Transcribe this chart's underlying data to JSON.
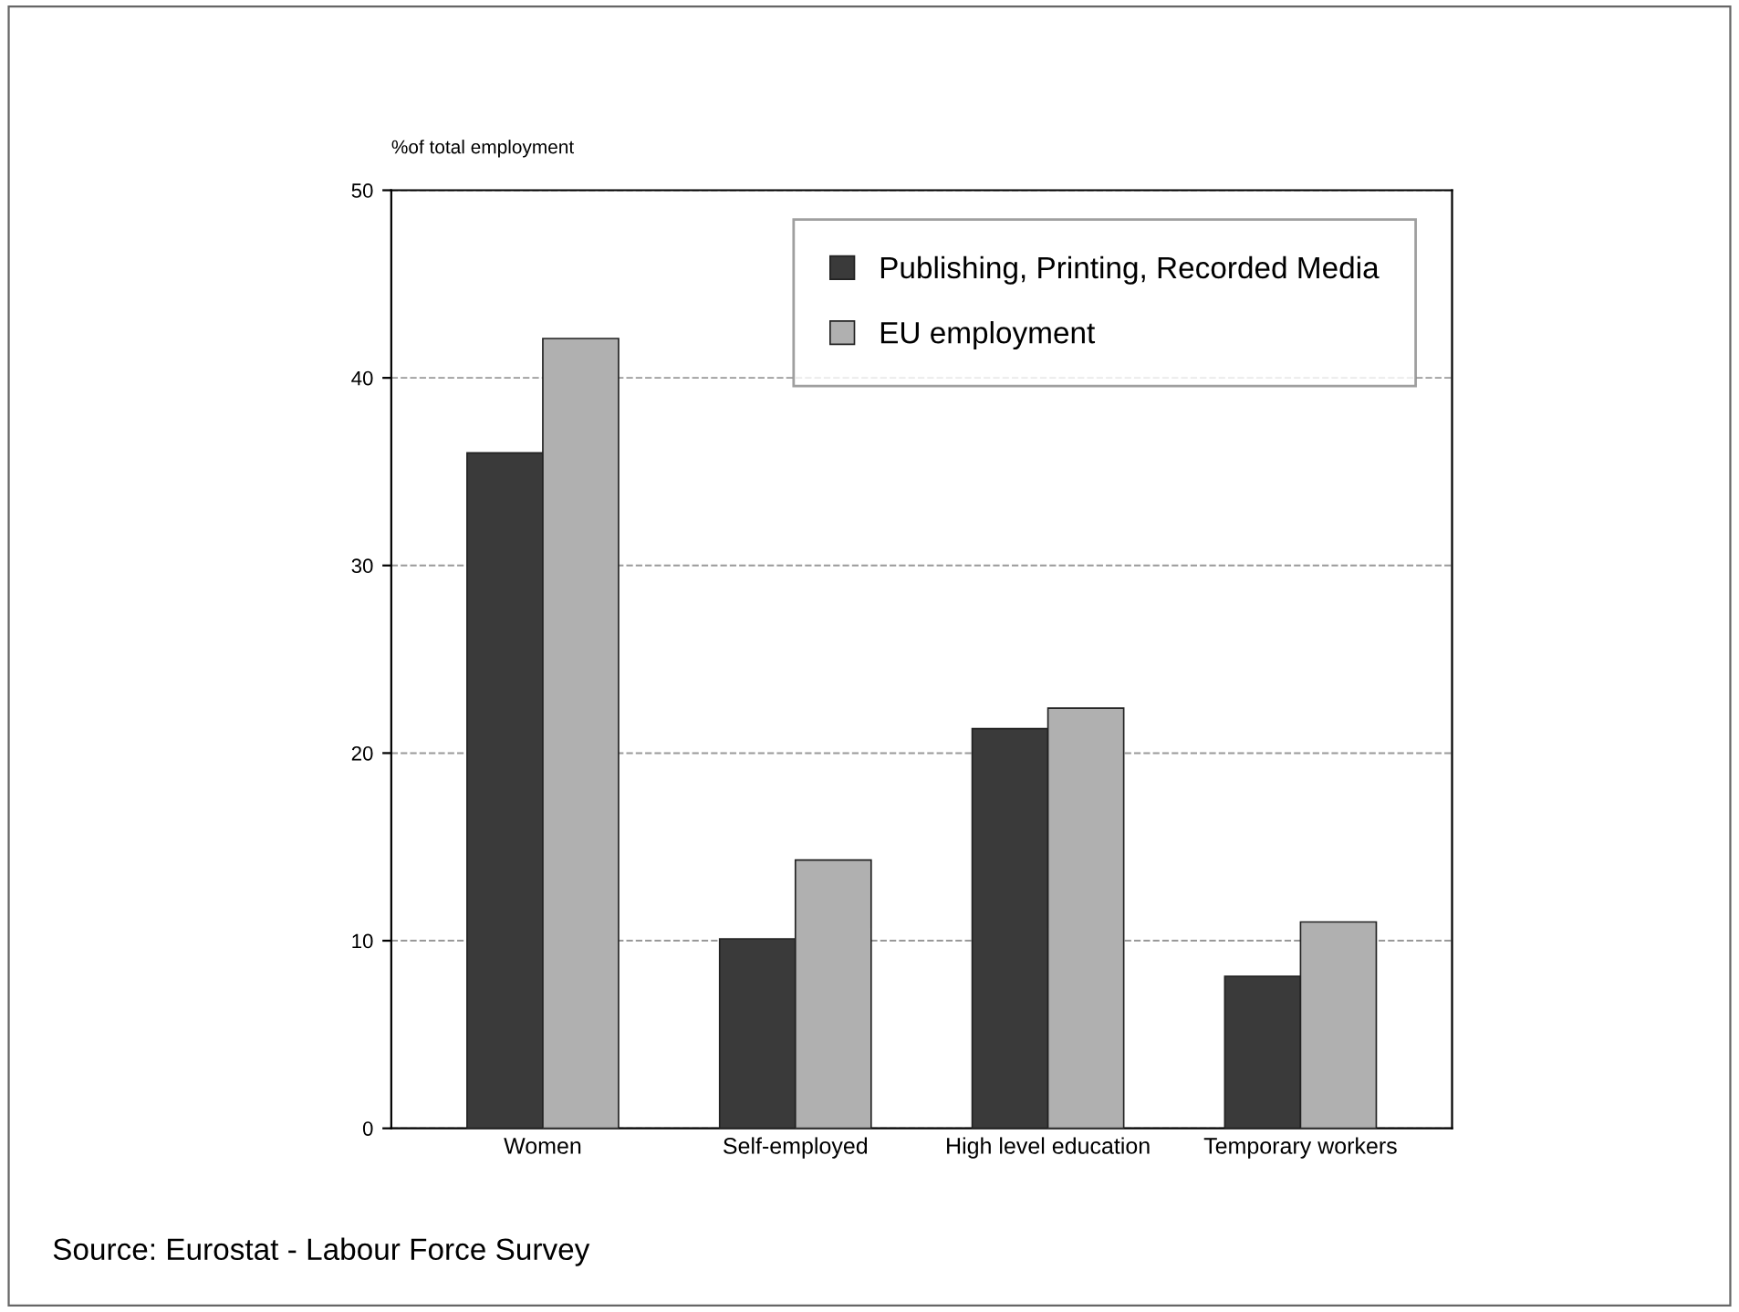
{
  "chart_data": {
    "type": "bar",
    "ylabel": "%of total employment",
    "categories": [
      "Women",
      "Self-employed",
      "High level education",
      "Temporary workers"
    ],
    "series": [
      {
        "name": "Publishing, Printing, Recorded Media",
        "color": "#3a3a3a",
        "values": [
          36,
          10.1,
          21.3,
          8.1
        ]
      },
      {
        "name": "EU employment",
        "color": "#b0b0b0",
        "values": [
          42.1,
          14.3,
          22.4,
          11
        ]
      }
    ],
    "ylim": [
      0,
      50
    ],
    "yticks": [
      0,
      10,
      20,
      30,
      40,
      50
    ],
    "grid": "y",
    "legend": "top right",
    "annotations": [
      "Source: Eurostat - Labour Force Survey"
    ]
  }
}
